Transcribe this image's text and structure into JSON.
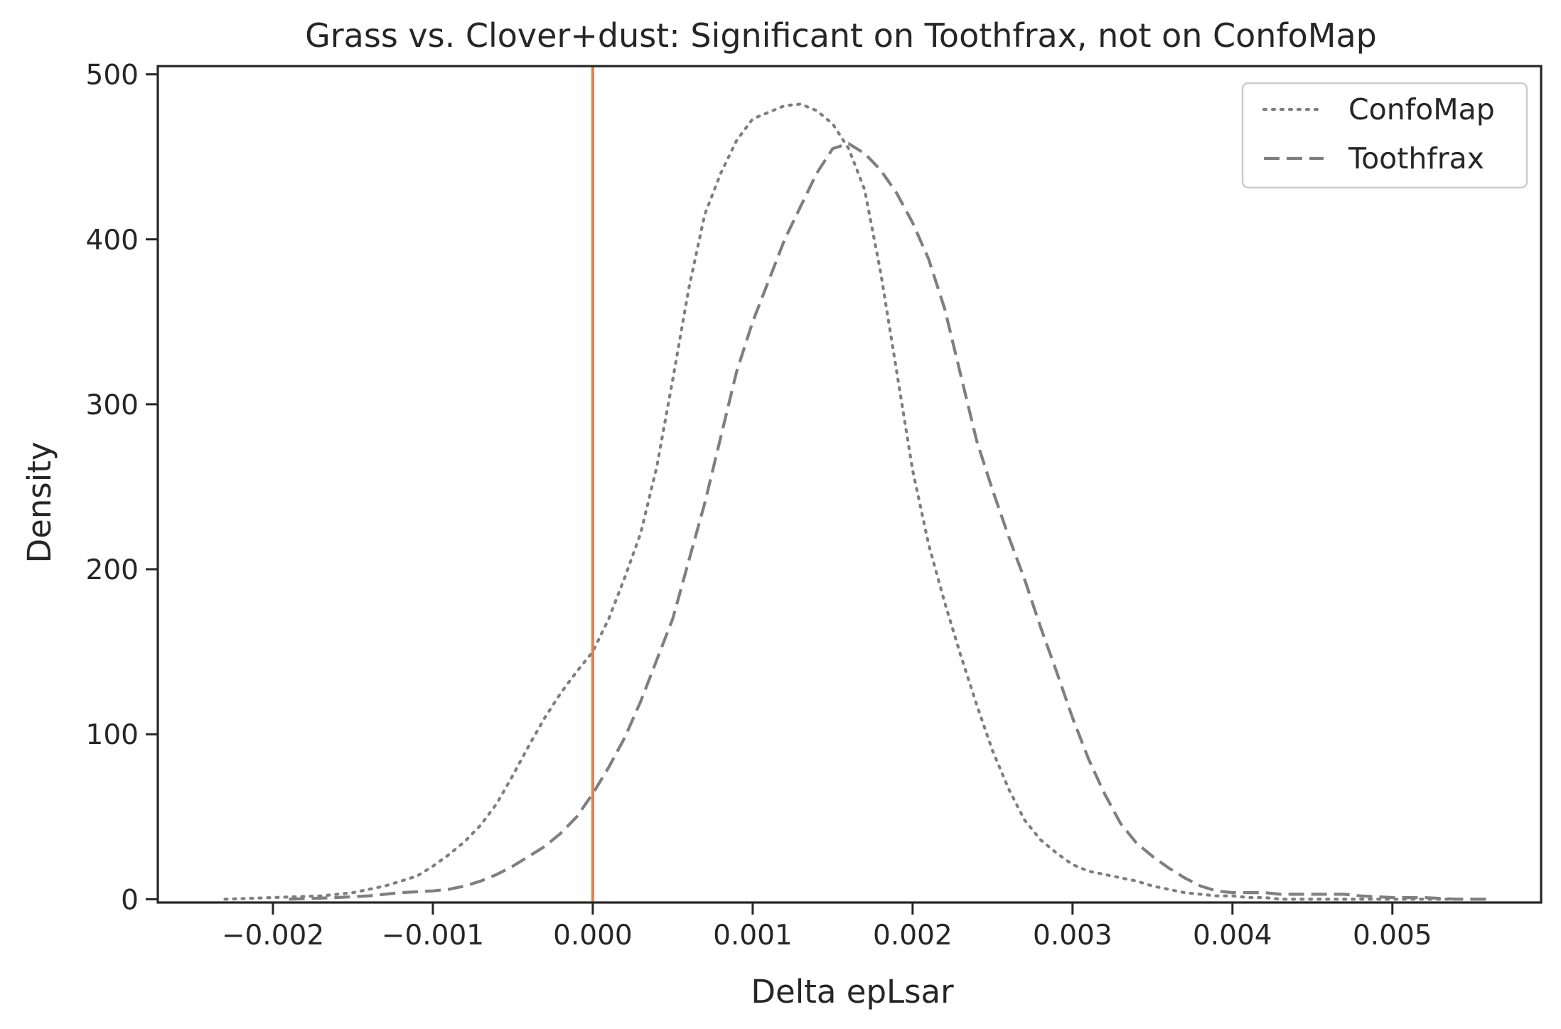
{
  "chart_data": {
    "type": "line",
    "title": "Grass vs. Clover+dust: Significant on Toothfrax, not on ConfoMap",
    "xlabel": "Delta epLsar",
    "ylabel": "Density",
    "xlim": [
      -0.00272,
      0.00593
    ],
    "ylim": [
      -2,
      505
    ],
    "xticks": [
      -0.002,
      -0.001,
      0.0,
      0.001,
      0.002,
      0.003,
      0.004,
      0.005
    ],
    "xtick_labels": [
      "−0.002",
      "−0.001",
      "0.000",
      "0.001",
      "0.002",
      "0.003",
      "0.004",
      "0.005"
    ],
    "yticks": [
      0,
      100,
      200,
      300,
      400,
      500
    ],
    "ytick_labels": [
      "0",
      "100",
      "200",
      "300",
      "400",
      "500"
    ],
    "grid": false,
    "legend_position": "top-right",
    "vline": {
      "x": 0.0,
      "color": "#dd8452"
    },
    "series": [
      {
        "name": "ConfoMap",
        "style": "dotted",
        "color": "#7f7f7f",
        "x": [
          -0.0023,
          -0.002,
          -0.0017,
          -0.0015,
          -0.0013,
          -0.0011,
          -0.001,
          -0.0009,
          -0.0008,
          -0.0007,
          -0.0006,
          -0.0005,
          -0.0004,
          -0.0003,
          -0.0002,
          -0.0001,
          0.0,
          0.0001,
          0.0002,
          0.0003,
          0.0004,
          0.0005,
          0.0006,
          0.0007,
          0.0008,
          0.0009,
          0.001,
          0.0011,
          0.0012,
          0.0013,
          0.0014,
          0.0015,
          0.0016,
          0.0017,
          0.0018,
          0.0019,
          0.002,
          0.0021,
          0.0022,
          0.0023,
          0.0024,
          0.0025,
          0.0026,
          0.0027,
          0.0028,
          0.0029,
          0.003,
          0.0031,
          0.0032,
          0.0033,
          0.0034,
          0.0035,
          0.0036,
          0.0037,
          0.0038,
          0.0039,
          0.004,
          0.0041,
          0.0042,
          0.0043,
          0.0045,
          0.0048,
          0.0051,
          0.0054
        ],
        "y": [
          0,
          1,
          2,
          4,
          8,
          14,
          20,
          27,
          35,
          45,
          58,
          75,
          93,
          110,
          125,
          138,
          150,
          170,
          195,
          222,
          262,
          315,
          370,
          415,
          440,
          460,
          473,
          477,
          481,
          482,
          478,
          470,
          455,
          430,
          380,
          320,
          260,
          215,
          180,
          148,
          118,
          90,
          67,
          48,
          36,
          28,
          21,
          17,
          15,
          13,
          11,
          8,
          6,
          4,
          3,
          2,
          2,
          1,
          1,
          0,
          0,
          0,
          0,
          0
        ]
      },
      {
        "name": "Toothfrax",
        "style": "dashed",
        "color": "#7f7f7f",
        "x": [
          -0.0019,
          -0.0016,
          -0.0014,
          -0.0012,
          -0.001,
          -0.0009,
          -0.0008,
          -0.0007,
          -0.0006,
          -0.0005,
          -0.0004,
          -0.0003,
          -0.0002,
          -0.0001,
          0.0,
          0.0001,
          0.0002,
          0.0003,
          0.0004,
          0.0005,
          0.0006,
          0.0007,
          0.0008,
          0.0009,
          0.001,
          0.0011,
          0.0012,
          0.0013,
          0.0014,
          0.0015,
          0.0016,
          0.0017,
          0.0018,
          0.0019,
          0.002,
          0.0021,
          0.0022,
          0.0023,
          0.0024,
          0.0025,
          0.0026,
          0.0027,
          0.0028,
          0.0029,
          0.003,
          0.0031,
          0.0032,
          0.0033,
          0.0034,
          0.0035,
          0.0036,
          0.0037,
          0.0038,
          0.0039,
          0.004,
          0.0041,
          0.0042,
          0.0043,
          0.0044,
          0.0045,
          0.0046,
          0.0047,
          0.0048,
          0.005,
          0.0052,
          0.0054,
          0.0056
        ],
        "y": [
          0,
          1,
          2,
          4,
          5,
          6,
          8,
          11,
          15,
          20,
          26,
          32,
          40,
          50,
          64,
          80,
          98,
          120,
          145,
          170,
          205,
          240,
          280,
          320,
          350,
          375,
          400,
          420,
          440,
          455,
          458,
          452,
          442,
          428,
          410,
          388,
          358,
          318,
          278,
          248,
          220,
          194,
          165,
          138,
          110,
          85,
          64,
          46,
          34,
          26,
          19,
          13,
          8,
          5,
          4,
          4,
          4,
          3,
          3,
          3,
          3,
          3,
          2,
          1,
          1,
          0,
          0
        ]
      }
    ]
  }
}
